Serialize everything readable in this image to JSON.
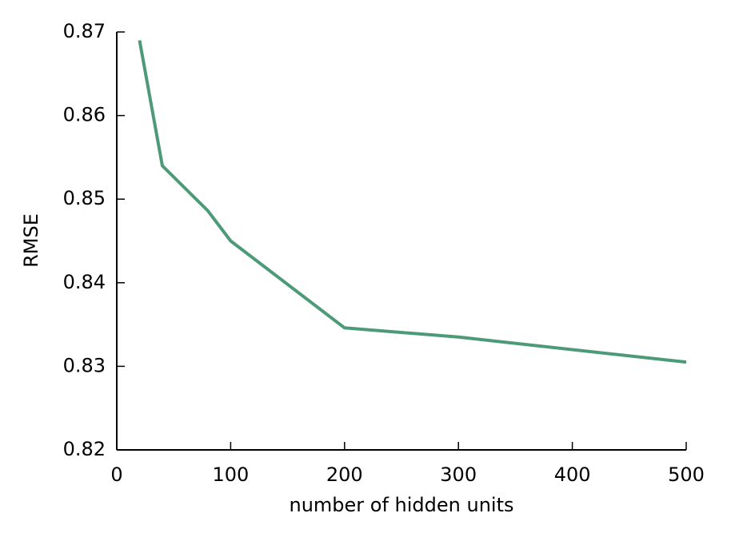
{
  "chart_data": {
    "type": "line",
    "x_label": "number of hidden units",
    "y_label": "RMSE",
    "x": [
      20,
      40,
      80,
      100,
      200,
      300,
      500
    ],
    "series": [
      {
        "color": "#4c9a78",
        "values": [
          0.869,
          0.854,
          0.8486,
          0.845,
          0.8346,
          0.8335,
          0.8305
        ]
      }
    ],
    "xlim": [
      0,
      500
    ],
    "xticks": [
      0,
      100,
      200,
      300,
      400,
      500
    ],
    "ylim": [
      0.82,
      0.87
    ],
    "yticks": [
      0.82,
      0.83,
      0.84,
      0.85,
      0.86,
      0.87
    ],
    "grid": false
  }
}
